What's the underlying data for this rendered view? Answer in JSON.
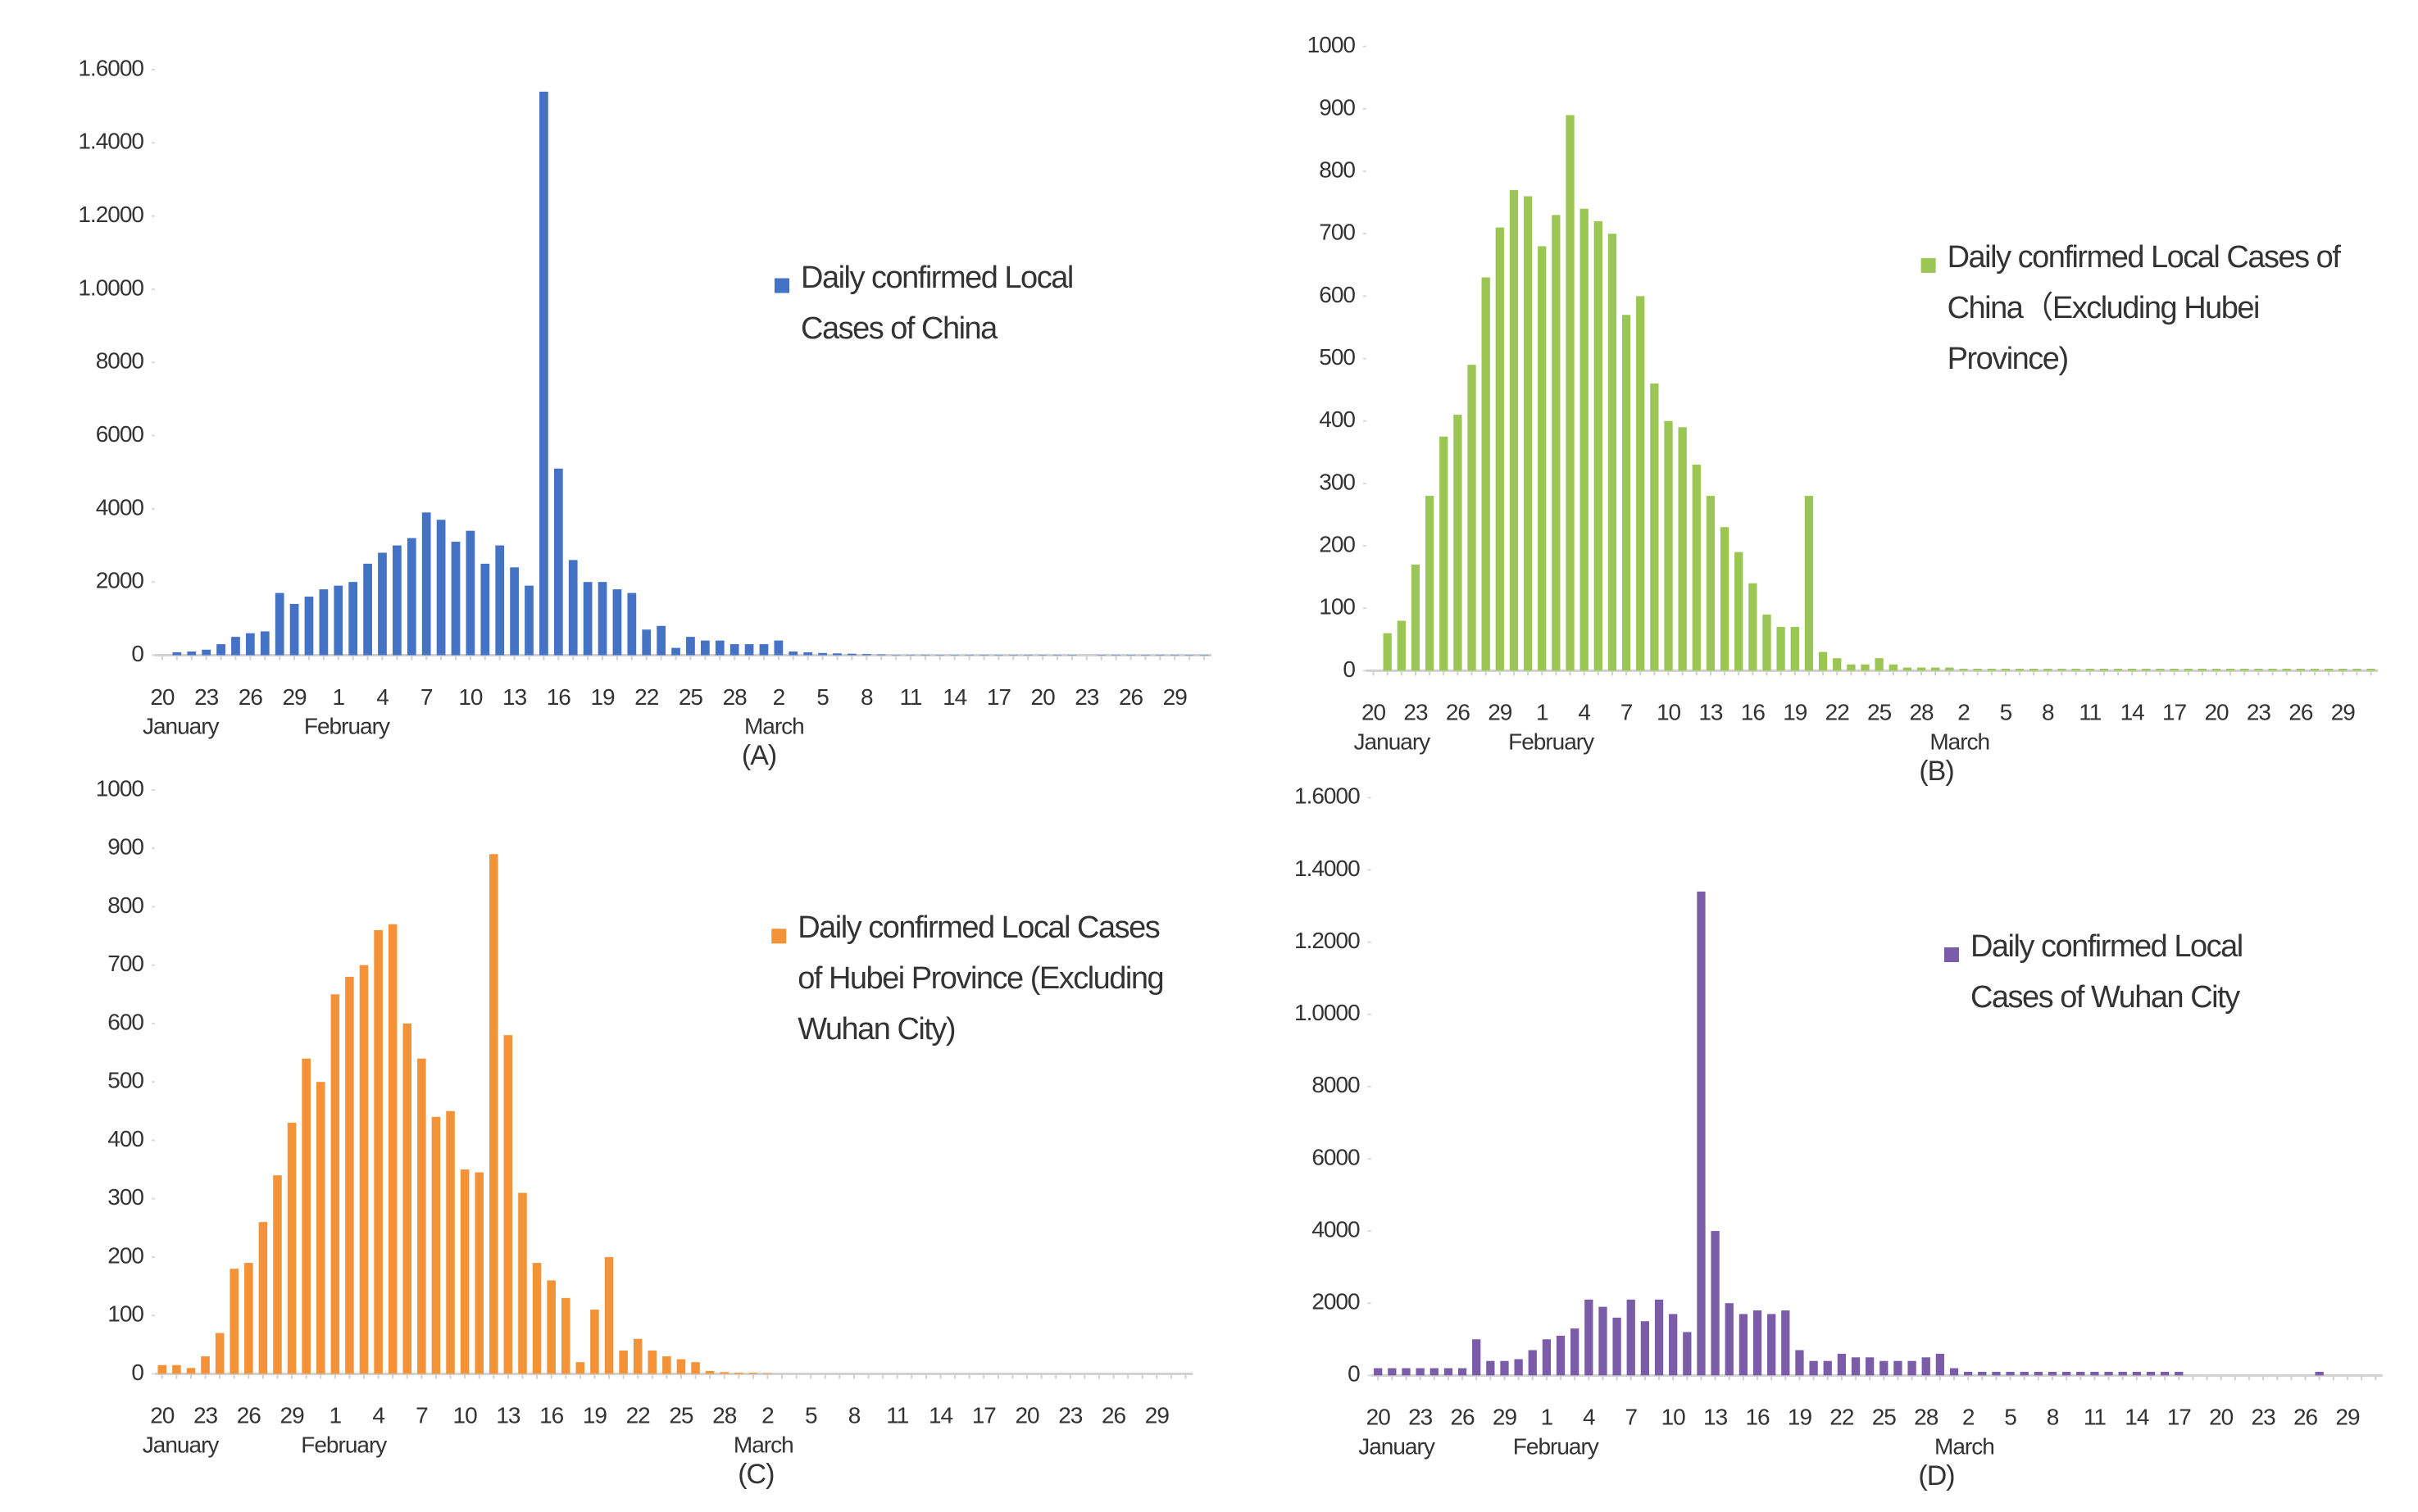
{
  "chart_data": [
    {
      "type": "bar",
      "caption": "(A)",
      "categories": [
        "20",
        null,
        null,
        "23",
        null,
        null,
        "26",
        null,
        null,
        "29",
        null,
        null,
        "1",
        null,
        null,
        "4",
        null,
        null,
        "7",
        null,
        null,
        "10",
        null,
        null,
        "13",
        null,
        null,
        "16",
        null,
        null,
        "19",
        null,
        null,
        "22",
        null,
        null,
        "25",
        null,
        null,
        "28",
        null,
        null,
        "2",
        null,
        null,
        "5",
        null,
        null,
        "8",
        null,
        null,
        "11",
        null,
        null,
        "14",
        null,
        null,
        "17",
        null,
        null,
        "20",
        null,
        null,
        "23",
        null,
        null,
        "26",
        null,
        null,
        "29",
        null,
        null
      ],
      "months": [
        "January",
        "February",
        "March"
      ],
      "series": [
        {
          "name": "Daily confirmed Local Cases of China",
          "color": "#4472c4",
          "values": [
            0,
            80,
            100,
            150,
            300,
            500,
            600,
            650,
            1700,
            1400,
            1600,
            1800,
            1900,
            2000,
            2500,
            2800,
            3000,
            3200,
            3900,
            3700,
            3100,
            3400,
            2500,
            3000,
            2400,
            1900,
            15400,
            5100,
            2600,
            2000,
            2000,
            1800,
            1700,
            700,
            800,
            200,
            500,
            400,
            400,
            300,
            300,
            300,
            400,
            100,
            80,
            60,
            50,
            40,
            30,
            20,
            10,
            10,
            10,
            10,
            10,
            10,
            10,
            10,
            10,
            10,
            10,
            10,
            10,
            0,
            10,
            10,
            10,
            10,
            10,
            10,
            10,
            10
          ]
        }
      ],
      "ylim": [
        0,
        16000
      ],
      "yticks": [
        0,
        2000,
        4000,
        6000,
        8000,
        {
          "value": 10000,
          "label": "1.0000"
        },
        {
          "value": 12000,
          "label": "1.2000"
        },
        {
          "value": 14000,
          "label": "1.4000"
        },
        {
          "value": 16000,
          "label": "1.6000"
        }
      ],
      "grid": false
    },
    {
      "type": "bar",
      "caption": "(B)",
      "categories": [
        "20",
        null,
        null,
        "23",
        null,
        null,
        "26",
        null,
        null,
        "29",
        null,
        null,
        "1",
        null,
        null,
        "4",
        null,
        null,
        "7",
        null,
        null,
        "10",
        null,
        null,
        "13",
        null,
        null,
        "16",
        null,
        null,
        "19",
        null,
        null,
        "22",
        null,
        null,
        "25",
        null,
        null,
        "28",
        null,
        null,
        "2",
        null,
        null,
        "5",
        null,
        null,
        "8",
        null,
        null,
        "11",
        null,
        null,
        "14",
        null,
        null,
        "17",
        null,
        null,
        "20",
        null,
        null,
        "23",
        null,
        null,
        "26",
        null,
        null,
        "29",
        null,
        null
      ],
      "months": [
        "January",
        "February",
        "March"
      ],
      "series": [
        {
          "name": "Daily confirmed Local Cases of China（Excluding Hubei Province)",
          "color": "#9bc653",
          "values": [
            0,
            60,
            80,
            170,
            280,
            375,
            410,
            490,
            630,
            710,
            770,
            760,
            680,
            730,
            890,
            740,
            720,
            700,
            570,
            600,
            460,
            400,
            390,
            330,
            280,
            230,
            190,
            140,
            90,
            70,
            70,
            280,
            30,
            20,
            10,
            10,
            20,
            10,
            5,
            5,
            5,
            5,
            3,
            3,
            3,
            3,
            3,
            3,
            3,
            3,
            3,
            3,
            3,
            3,
            3,
            3,
            3,
            3,
            3,
            3,
            3,
            3,
            3,
            3,
            3,
            3,
            3,
            3,
            3,
            3,
            3,
            3
          ]
        }
      ],
      "ylim": [
        0,
        1000
      ],
      "yticks": [
        0,
        100,
        200,
        300,
        400,
        500,
        600,
        700,
        800,
        900,
        1000
      ],
      "grid": false
    },
    {
      "type": "bar",
      "caption": "(C)",
      "categories": [
        "20",
        null,
        null,
        "23",
        null,
        null,
        "26",
        null,
        null,
        "29",
        null,
        null,
        "1",
        null,
        null,
        "4",
        null,
        null,
        "7",
        null,
        null,
        "10",
        null,
        null,
        "13",
        null,
        null,
        "16",
        null,
        null,
        "19",
        null,
        null,
        "22",
        null,
        null,
        "25",
        null,
        null,
        "28",
        null,
        null,
        "2",
        null,
        null,
        "5",
        null,
        null,
        "8",
        null,
        null,
        "11",
        null,
        null,
        "14",
        null,
        null,
        "17",
        null,
        null,
        "20",
        null,
        null,
        "23",
        null,
        null,
        "26",
        null,
        null,
        "29",
        null,
        null
      ],
      "months": [
        "January",
        "February",
        "March"
      ],
      "series": [
        {
          "name": "Daily confirmed Local Cases of Hubei Province (Excluding Wuhan City)",
          "color": "#f39237",
          "values": [
            15,
            15,
            10,
            30,
            70,
            180,
            190,
            260,
            340,
            430,
            540,
            500,
            650,
            680,
            700,
            760,
            770,
            600,
            540,
            440,
            450,
            350,
            345,
            890,
            580,
            310,
            190,
            160,
            130,
            20,
            110,
            200,
            40,
            60,
            40,
            30,
            25,
            20,
            5,
            3,
            2,
            2,
            1,
            0,
            0,
            0,
            0,
            0,
            0,
            0,
            0,
            0,
            0,
            0,
            0,
            0,
            0,
            0,
            0,
            0,
            0,
            0,
            0,
            0,
            0,
            0,
            0,
            0,
            0,
            0,
            0,
            0
          ]
        }
      ],
      "ylim": [
        0,
        1000
      ],
      "yticks": [
        0,
        100,
        200,
        300,
        400,
        500,
        600,
        700,
        800,
        900,
        1000
      ],
      "grid": false
    },
    {
      "type": "bar",
      "caption": "(D)",
      "categories": [
        "20",
        null,
        null,
        "23",
        null,
        null,
        "26",
        null,
        null,
        "29",
        null,
        null,
        "1",
        null,
        null,
        "4",
        null,
        null,
        "7",
        null,
        null,
        "10",
        null,
        null,
        "13",
        null,
        null,
        "16",
        null,
        null,
        "19",
        null,
        null,
        "22",
        null,
        null,
        "25",
        null,
        null,
        "28",
        null,
        null,
        "2",
        null,
        null,
        "5",
        null,
        null,
        "8",
        null,
        null,
        "11",
        null,
        null,
        "14",
        null,
        null,
        "17",
        null,
        null,
        "20",
        null,
        null,
        "23",
        null,
        null,
        "26",
        null,
        null,
        "29",
        null,
        null
      ],
      "months": [
        "January",
        "February",
        "March"
      ],
      "series": [
        {
          "name": "Daily confirmed Local Cases of Wuhan City",
          "color": "#7a5ca8",
          "values": [
            200,
            200,
            200,
            200,
            200,
            200,
            200,
            1000,
            400,
            400,
            450,
            700,
            1000,
            1100,
            1300,
            2100,
            1900,
            1600,
            2100,
            1500,
            2100,
            1700,
            1200,
            13400,
            4000,
            2000,
            1700,
            1800,
            1700,
            1800,
            700,
            400,
            400,
            600,
            500,
            500,
            400,
            400,
            400,
            500,
            600,
            200,
            100,
            100,
            100,
            100,
            100,
            100,
            100,
            100,
            100,
            100,
            100,
            100,
            100,
            100,
            100,
            100,
            0,
            0,
            0,
            0,
            0,
            0,
            0,
            0,
            0,
            100,
            0,
            0,
            0,
            0
          ]
        }
      ],
      "ylim": [
        0,
        16000
      ],
      "yticks": [
        0,
        2000,
        4000,
        6000,
        8000,
        {
          "value": 10000,
          "label": "1.0000"
        },
        {
          "value": 12000,
          "label": "1.2000"
        },
        {
          "value": 14000,
          "label": "1.4000"
        },
        {
          "value": 16000,
          "label": "1.6000"
        }
      ],
      "grid": false
    }
  ]
}
